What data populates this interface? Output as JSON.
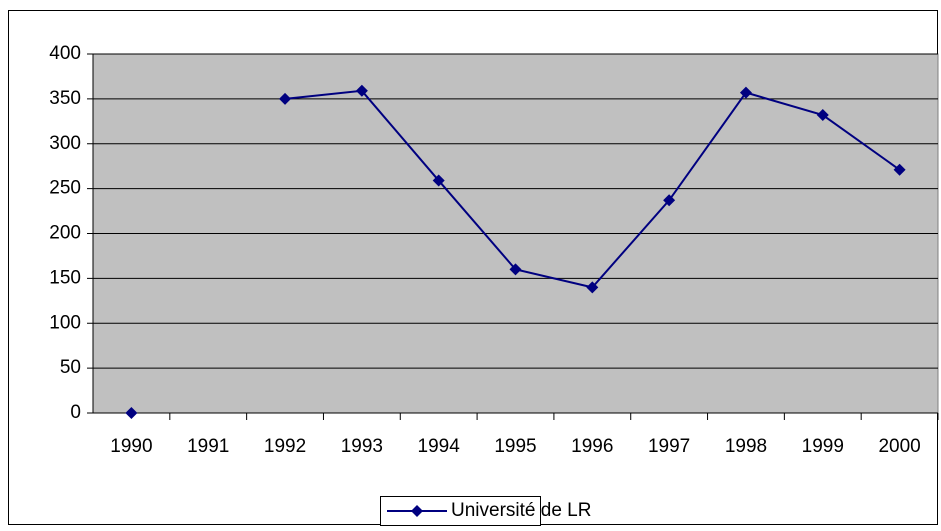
{
  "chart_data": {
    "type": "line",
    "categories": [
      "1990",
      "1991",
      "1992",
      "1993",
      "1994",
      "1995",
      "1996",
      "1997",
      "1998",
      "1999",
      "2000"
    ],
    "series": [
      {
        "name": "Université de LR",
        "color": "#000080",
        "values": [
          0,
          null,
          350,
          359,
          259,
          160,
          140,
          237,
          357,
          332,
          271
        ]
      }
    ],
    "ylim": [
      0,
      400
    ],
    "yticks": [
      0,
      50,
      100,
      150,
      200,
      250,
      300,
      350,
      400
    ],
    "grid": true,
    "legend": "bottom",
    "plot_background": "#c0c0c0"
  }
}
